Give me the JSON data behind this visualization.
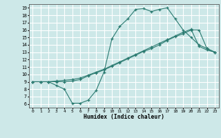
{
  "xlabel": "Humidex (Indice chaleur)",
  "background_color": "#cde8e8",
  "grid_color": "#ffffff",
  "line_color": "#2a7a70",
  "xlim": [
    -0.5,
    23.5
  ],
  "ylim": [
    5.5,
    19.5
  ],
  "xticks": [
    0,
    1,
    2,
    3,
    4,
    5,
    6,
    7,
    8,
    9,
    10,
    11,
    12,
    13,
    14,
    15,
    16,
    17,
    18,
    19,
    20,
    21,
    22,
    23
  ],
  "yticks": [
    6,
    7,
    8,
    9,
    10,
    11,
    12,
    13,
    14,
    15,
    16,
    17,
    18,
    19
  ],
  "line1_x": [
    0,
    1,
    2,
    3,
    4,
    5,
    6,
    7,
    8,
    9,
    10,
    11,
    12,
    13,
    14,
    15,
    16,
    17,
    18,
    19,
    20,
    21,
    22,
    23
  ],
  "line1_y": [
    9.0,
    9.0,
    9.0,
    8.5,
    8.0,
    6.1,
    6.1,
    6.5,
    7.8,
    10.3,
    14.8,
    16.5,
    17.5,
    18.8,
    18.9,
    18.5,
    18.8,
    19.0,
    17.5,
    16.0,
    15.0,
    14.0,
    13.5,
    13.0
  ],
  "line2_x": [
    0,
    1,
    2,
    3,
    4,
    5,
    6,
    7,
    8,
    9,
    10,
    11,
    12,
    13,
    14,
    15,
    16,
    17,
    18,
    19,
    20,
    21,
    22,
    23
  ],
  "line2_y": [
    9.0,
    9.0,
    9.0,
    9.0,
    9.0,
    9.1,
    9.3,
    9.8,
    10.2,
    10.6,
    11.1,
    11.6,
    12.1,
    12.6,
    13.1,
    13.5,
    14.0,
    14.6,
    15.1,
    15.5,
    16.0,
    16.0,
    13.5,
    13.0
  ],
  "line3_x": [
    0,
    1,
    2,
    3,
    4,
    5,
    6,
    7,
    8,
    9,
    10,
    11,
    12,
    13,
    14,
    15,
    16,
    17,
    18,
    19,
    20,
    21,
    22,
    23
  ],
  "line3_y": [
    9.0,
    9.0,
    9.0,
    9.1,
    9.2,
    9.3,
    9.5,
    9.9,
    10.3,
    10.7,
    11.2,
    11.7,
    12.2,
    12.7,
    13.2,
    13.7,
    14.2,
    14.7,
    15.2,
    15.7,
    16.1,
    13.8,
    13.3,
    13.0
  ]
}
